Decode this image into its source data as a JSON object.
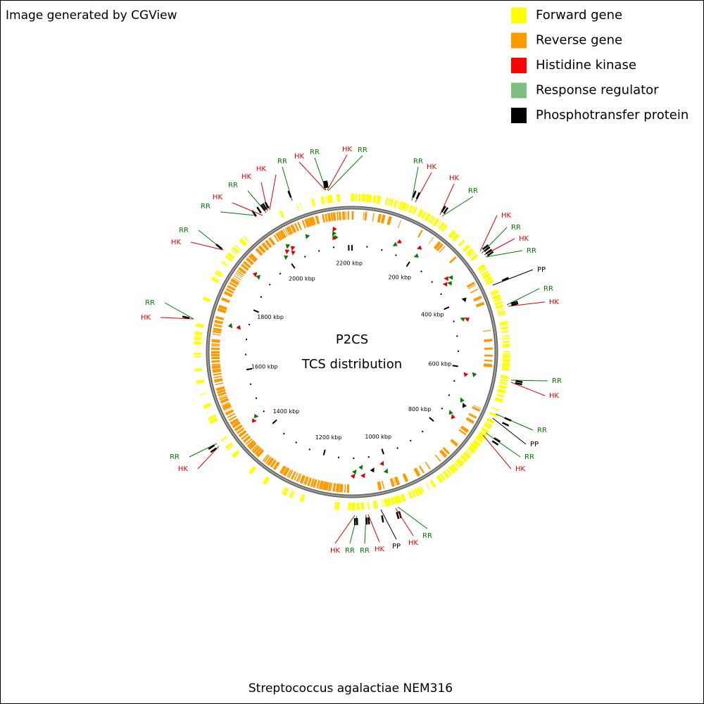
{
  "header": {
    "title": "Image generated by CGView"
  },
  "legend": {
    "items": [
      {
        "label": "Forward gene",
        "color": "#ffff00"
      },
      {
        "label": "Reverse gene",
        "color": "#ff9900"
      },
      {
        "label": "Histidine kinase",
        "color": "#ff0000"
      },
      {
        "label": "Response regulator",
        "color": "#7fbf7f"
      },
      {
        "label": "Phosphotransfer protein",
        "color": "#000000"
      }
    ]
  },
  "center": {
    "lines": [
      "P2CS",
      "TCS distribution"
    ]
  },
  "ruler": {
    "labels": [
      "200 kbp",
      "400 kbp",
      "600 kbp",
      "800 kbp",
      "1000 kbp",
      "1200 kbp",
      "1400 kbp",
      "1600 kbp",
      "1800 kbp",
      "2000 kbp",
      "2200 kbp"
    ]
  },
  "features": [
    {
      "label": "RR",
      "color": "#007f00"
    },
    {
      "label": "HK",
      "color": "#e00000"
    },
    {
      "label": "HK",
      "color": "#e00000"
    },
    {
      "label": "RR",
      "color": "#007f00"
    },
    {
      "label": "HK",
      "color": "#e00000"
    },
    {
      "label": "RR",
      "color": "#007f00"
    },
    {
      "label": "HK",
      "color": "#e00000"
    },
    {
      "label": "RR",
      "color": "#007f00"
    },
    {
      "label": "PP",
      "color": "#000000"
    },
    {
      "label": "RR",
      "color": "#007f00"
    },
    {
      "label": "HK",
      "color": "#e00000"
    },
    {
      "label": "RR",
      "color": "#007f00"
    },
    {
      "label": "HK",
      "color": "#e00000"
    },
    {
      "label": "RR",
      "color": "#007f00"
    },
    {
      "label": "PP",
      "color": "#000000"
    },
    {
      "label": "RR",
      "color": "#007f00"
    },
    {
      "label": "HK",
      "color": "#e00000"
    },
    {
      "label": "RR",
      "color": "#007f00"
    },
    {
      "label": "HK",
      "color": "#e00000"
    },
    {
      "label": "PP",
      "color": "#000000"
    },
    {
      "label": "HK",
      "color": "#e00000"
    },
    {
      "label": "RR",
      "color": "#007f00"
    },
    {
      "label": "RR",
      "color": "#007f00"
    },
    {
      "label": "HK",
      "color": "#e00000"
    },
    {
      "label": "RR",
      "color": "#007f00"
    },
    {
      "label": "HK",
      "color": "#e00000"
    },
    {
      "label": "RR",
      "color": "#007f00"
    },
    {
      "label": "HK",
      "color": "#e00000"
    },
    {
      "label": "RR",
      "color": "#007f00"
    },
    {
      "label": "HK",
      "color": "#e00000"
    },
    {
      "label": "RR",
      "color": "#007f00"
    },
    {
      "label": "HK",
      "color": "#e00000"
    },
    {
      "label": "RR",
      "color": "#007f00"
    },
    {
      "label": "HK",
      "color": "#e00000"
    },
    {
      "label": "HK",
      "color": "#e00000"
    },
    {
      "label": "RR",
      "color": "#007f00"
    },
    {
      "label": "HK",
      "color": "#e00000"
    },
    {
      "label": "RR",
      "color": "#007f00"
    },
    {
      "label": "HK",
      "color": "#e00000"
    },
    {
      "label": "RR",
      "color": "#007f00"
    }
  ],
  "footer": {
    "organism": "Streptococcus agalactiae NEM316"
  }
}
